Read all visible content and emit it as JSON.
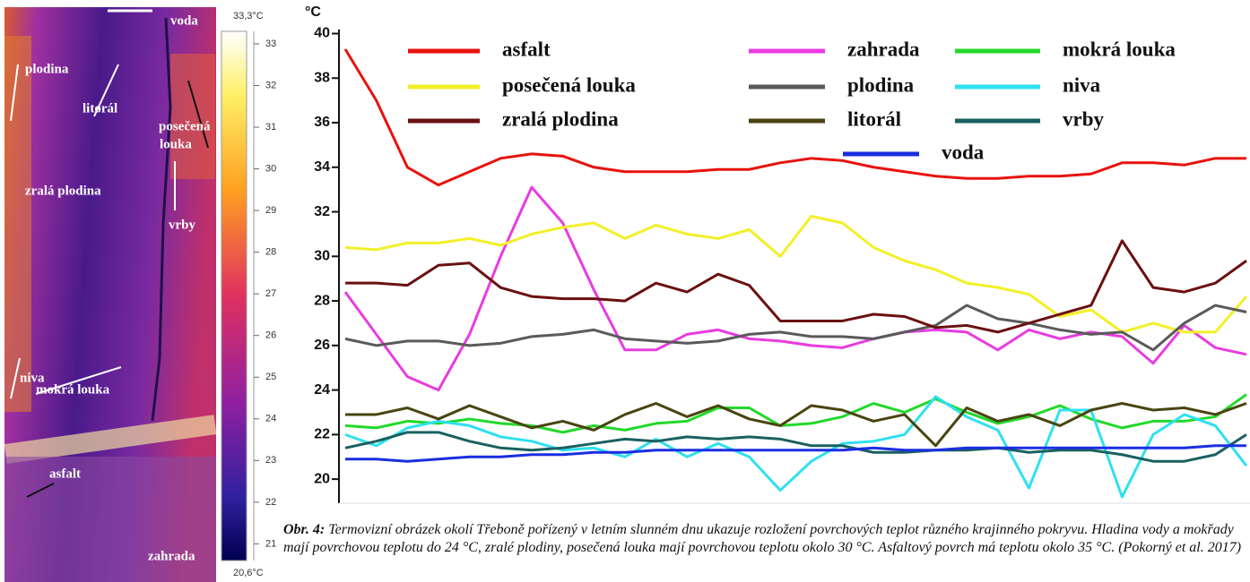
{
  "thermal_image": {
    "labels": [
      "voda",
      "plodina",
      "litorál",
      "posečená",
      "louka",
      "zralá plodina",
      "vrby",
      "niva",
      "mokrá louka",
      "asfalt",
      "zahrada"
    ]
  },
  "colorbar": {
    "max_label": "33,3°C",
    "min_label": "20,6°C",
    "lim": [
      20.6,
      33.3
    ],
    "ticks": [
      33,
      32,
      31,
      30,
      29,
      28,
      27,
      26,
      25,
      24,
      23,
      22,
      21
    ]
  },
  "chart_data": {
    "type": "line",
    "y_label": "°C",
    "categories": [
      null,
      null,
      null,
      null,
      null,
      null,
      null,
      null,
      null,
      null,
      null,
      null,
      null,
      null,
      null,
      null,
      null,
      null,
      null,
      null,
      null,
      null,
      null,
      null,
      null,
      null,
      null,
      null,
      null,
      null
    ],
    "ylim": [
      19,
      40.1
    ],
    "yticks": [
      20,
      22,
      24,
      26,
      28,
      30,
      32,
      34,
      36,
      38,
      40
    ],
    "series": [
      {
        "name": "asfalt",
        "color": "#e8120c",
        "values": [
          39.3,
          37,
          34,
          33.2,
          33.8,
          34.4,
          34.6,
          34.5,
          34.0,
          33.8,
          33.8,
          33.8,
          33.9,
          33.9,
          34.2,
          34.4,
          34.3,
          34.0,
          33.8,
          33.6,
          33.5,
          33.5,
          33.6,
          33.6,
          33.7,
          34.2,
          34.2,
          34.1,
          34.4,
          34.4
        ]
      },
      {
        "name": "zahrada",
        "color": "#e83ce0",
        "values": [
          28.4,
          26.5,
          24.6,
          24.0,
          26.5,
          30.0,
          33.1,
          31.5,
          28.5,
          25.8,
          25.8,
          26.5,
          26.7,
          26.3,
          26.2,
          26.0,
          25.9,
          26.3,
          26.6,
          26.7,
          26.6,
          25.8,
          26.7,
          26.3,
          26.6,
          26.4,
          25.2,
          26.9,
          25.9,
          25.6
        ]
      },
      {
        "name": "mokrá louka",
        "color": "#22d92a",
        "values": [
          22.4,
          22.3,
          22.6,
          22.5,
          22.7,
          22.5,
          22.4,
          22.1,
          22.4,
          22.2,
          22.5,
          22.6,
          23.2,
          23.2,
          22.4,
          22.5,
          22.8,
          23.4,
          23.0,
          23.6,
          23.0,
          22.5,
          22.8,
          23.3,
          22.7,
          22.3,
          22.6,
          22.6,
          22.8,
          23.8
        ]
      },
      {
        "name": "posečená louka",
        "color": "#f2f028",
        "values": [
          30.4,
          30.3,
          30.6,
          30.6,
          30.8,
          30.5,
          31.0,
          31.3,
          31.5,
          30.8,
          31.4,
          31.0,
          30.8,
          31.2,
          30.0,
          31.8,
          31.5,
          30.4,
          29.8,
          29.4,
          28.8,
          28.6,
          28.3,
          27.3,
          27.6,
          26.6,
          27.0,
          26.6,
          26.6,
          28.2
        ]
      },
      {
        "name": "plodina",
        "color": "#5a5a5a",
        "values": [
          26.3,
          26.0,
          26.2,
          26.2,
          26.0,
          26.1,
          26.4,
          26.5,
          26.7,
          26.3,
          26.2,
          26.1,
          26.2,
          26.5,
          26.6,
          26.4,
          26.4,
          26.3,
          26.6,
          26.9,
          27.8,
          27.2,
          27.0,
          26.7,
          26.5,
          26.6,
          25.8,
          27.0,
          27.8,
          27.5
        ]
      },
      {
        "name": "niva",
        "color": "#2fe0f0",
        "values": [
          22.0,
          21.5,
          22.3,
          22.6,
          22.4,
          21.9,
          21.7,
          21.3,
          21.4,
          21.0,
          21.8,
          21.0,
          21.6,
          21.0,
          19.5,
          20.8,
          21.6,
          21.7,
          22.0,
          23.7,
          22.8,
          22.2,
          19.6,
          23.1,
          23.1,
          19.2,
          22.0,
          22.9,
          22.4,
          20.6
        ]
      },
      {
        "name": "zralá plodina",
        "color": "#6a1010",
        "values": [
          28.8,
          28.8,
          28.7,
          29.6,
          29.7,
          28.6,
          28.2,
          28.1,
          28.1,
          28.0,
          28.8,
          28.4,
          29.2,
          28.7,
          27.1,
          27.1,
          27.1,
          27.4,
          27.3,
          26.8,
          26.9,
          26.6,
          27.0,
          27.4,
          27.8,
          30.7,
          28.6,
          28.4,
          28.8,
          29.8
        ]
      },
      {
        "name": "litorál",
        "color": "#4a4410",
        "values": [
          22.9,
          22.9,
          23.2,
          22.7,
          23.3,
          22.8,
          22.3,
          22.6,
          22.2,
          22.9,
          23.4,
          22.8,
          23.3,
          22.7,
          22.4,
          23.3,
          23.1,
          22.6,
          22.9,
          21.5,
          23.2,
          22.6,
          22.9,
          22.4,
          23.1,
          23.4,
          23.1,
          23.2,
          22.9,
          23.4
        ]
      },
      {
        "name": "vrby",
        "color": "#1a6060",
        "values": [
          21.4,
          21.7,
          22.1,
          22.1,
          21.7,
          21.4,
          21.3,
          21.4,
          21.6,
          21.8,
          21.7,
          21.9,
          21.8,
          21.9,
          21.8,
          21.5,
          21.5,
          21.2,
          21.2,
          21.3,
          21.3,
          21.4,
          21.2,
          21.3,
          21.3,
          21.1,
          20.8,
          20.8,
          21.1,
          22.0
        ]
      },
      {
        "name": "voda",
        "color": "#1a2ee0",
        "values": [
          20.9,
          20.9,
          20.8,
          20.9,
          21.0,
          21.0,
          21.1,
          21.1,
          21.2,
          21.2,
          21.3,
          21.3,
          21.3,
          21.3,
          21.3,
          21.3,
          21.3,
          21.4,
          21.3,
          21.3,
          21.4,
          21.4,
          21.4,
          21.4,
          21.4,
          21.4,
          21.4,
          21.4,
          21.5,
          21.5
        ]
      }
    ]
  },
  "caption": {
    "label": "Obr. 4:",
    "text": "Termovizní obrázek okolí Třeboně pořízený v letním slunném dnu ukazuje rozložení povrchových teplot různého krajinného pokryvu. Hladina vody a mokřady mají povrchovou teplotu do 24 °C, zralé plodiny, posečená louka mají povrchovou teplotu okolo 30 °C. Asfaltový povrch má teplotu okolo 35 °C. (Pokorný et al. 2017)"
  }
}
